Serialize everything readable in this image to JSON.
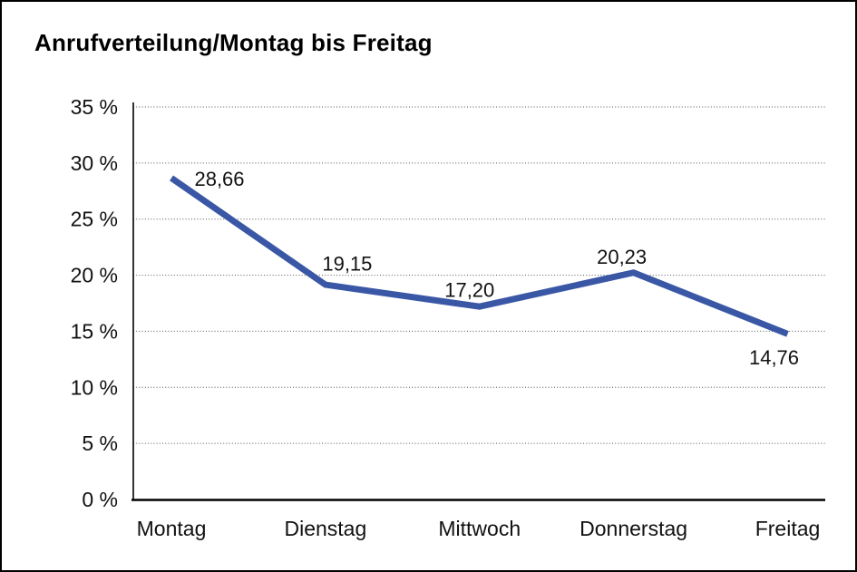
{
  "page": {
    "background_color": "#ffffff",
    "border_color": "#000000"
  },
  "chart_data": {
    "type": "line",
    "title": "Anrufverteilung/Montag bis Freitag",
    "categories": [
      "Montag",
      "Dienstag",
      "Mittwoch",
      "Donnerstag",
      "Freitag"
    ],
    "values": [
      28.66,
      19.15,
      17.2,
      20.23,
      14.76
    ],
    "point_labels": [
      "28,66",
      "19,15",
      "17,20",
      "20,23",
      "14,76"
    ],
    "xlabel": "",
    "ylabel": "",
    "ylim": [
      0,
      35
    ],
    "ytick_step": 5,
    "ytick_labels": [
      "0 %",
      "5 %",
      "10 %",
      "15 %",
      "20 %",
      "25 %",
      "30 %",
      "35 %"
    ],
    "grid": "horizontal-dotted",
    "legend_position": "none",
    "line_color": "#3A57A6",
    "axis_color": "#000000",
    "grid_color": "#555555",
    "label_color": "#111111"
  }
}
